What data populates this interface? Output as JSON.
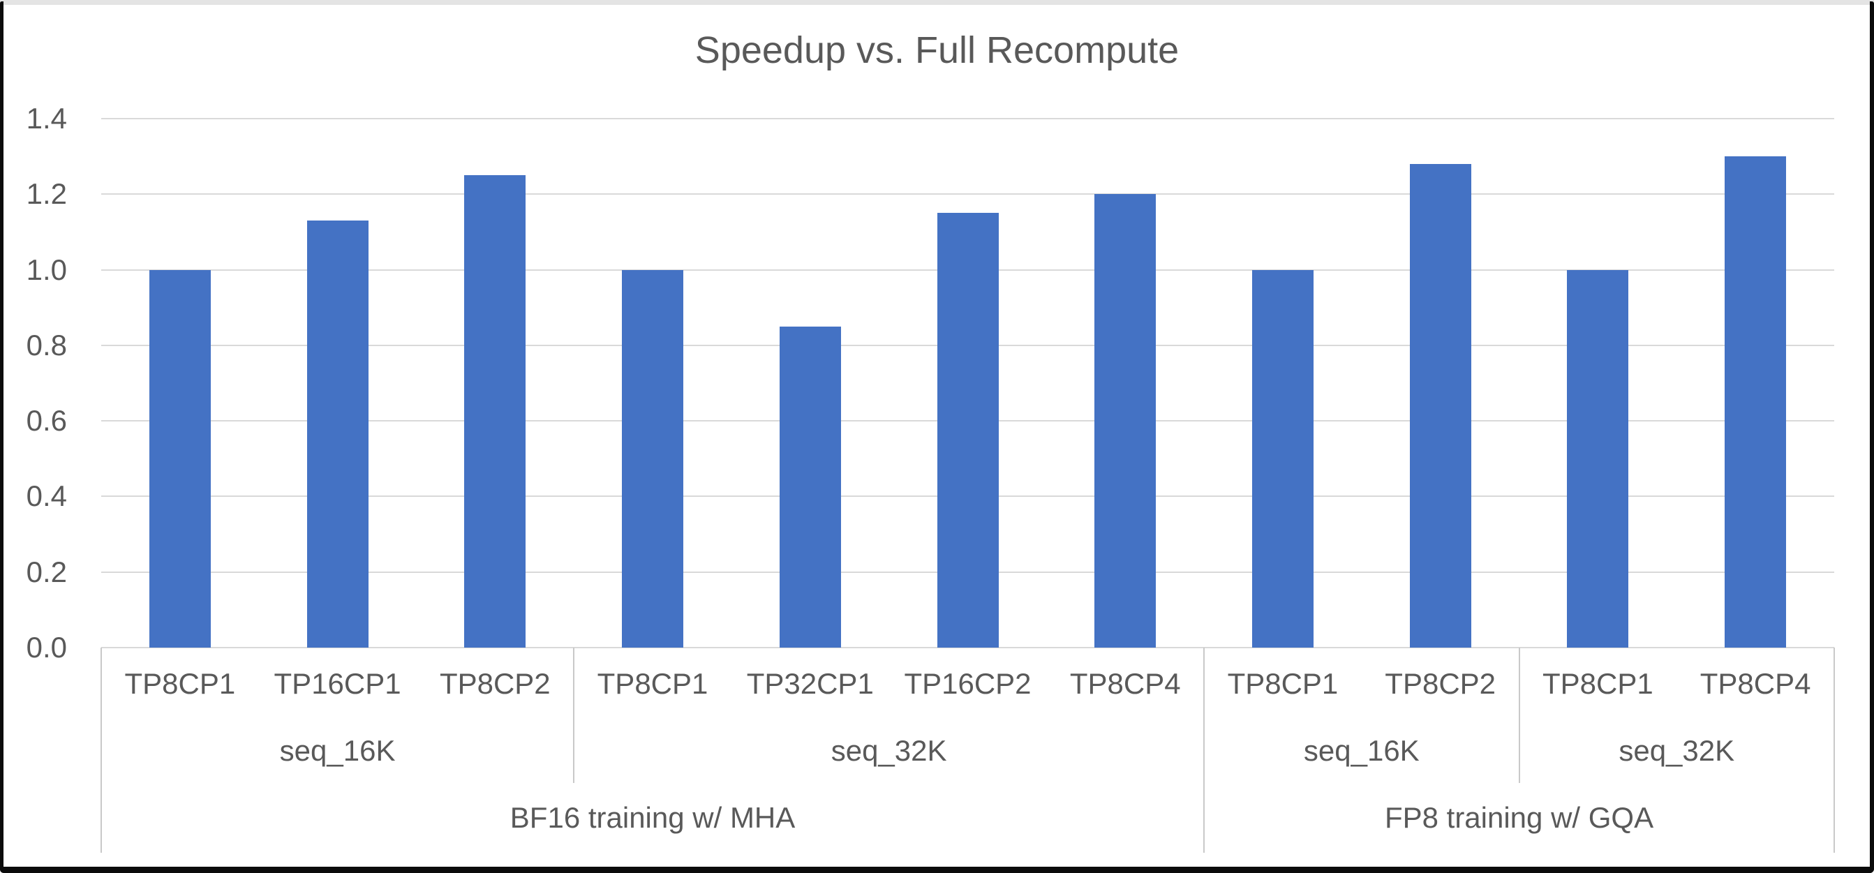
{
  "chart_data": {
    "type": "bar",
    "title": "Speedup vs. Full Recompute",
    "categories": [
      "TP8CP1",
      "TP16CP1",
      "TP8CP2",
      "TP8CP1",
      "TP32CP1",
      "TP16CP2",
      "TP8CP4",
      "TP8CP1",
      "TP8CP2",
      "TP8CP1",
      "TP8CP4"
    ],
    "values": [
      1.0,
      1.13,
      1.25,
      1.0,
      0.85,
      1.15,
      1.2,
      1.0,
      1.28,
      1.0,
      1.3
    ],
    "group_rows": [
      {
        "level": "sequence-length",
        "groups": [
          {
            "label": "seq_16K",
            "span": 3
          },
          {
            "label": "seq_32K",
            "span": 4
          },
          {
            "label": "seq_16K",
            "span": 2
          },
          {
            "label": "seq_32K",
            "span": 2
          }
        ]
      },
      {
        "level": "training-config",
        "groups": [
          {
            "label": "BF16 training w/ MHA",
            "span": 7
          },
          {
            "label": "FP8 training w/ GQA",
            "span": 4
          }
        ]
      }
    ],
    "ylim": [
      0,
      1.4
    ],
    "yticks": [
      0,
      0.2,
      0.4,
      0.6,
      0.8,
      1.0,
      1.2,
      1.4
    ],
    "ytick_labels": [
      "0.0",
      "0.2",
      "0.4",
      "0.6",
      "0.8",
      "1.0",
      "1.2",
      "1.4"
    ],
    "xlabel": "",
    "ylabel": "",
    "legend": "none",
    "grid": true,
    "bar_color": "#4472C4",
    "text_color": "#595959",
    "gridline_color": "#d9d9d9",
    "separator_color": "#c9c9c9"
  }
}
